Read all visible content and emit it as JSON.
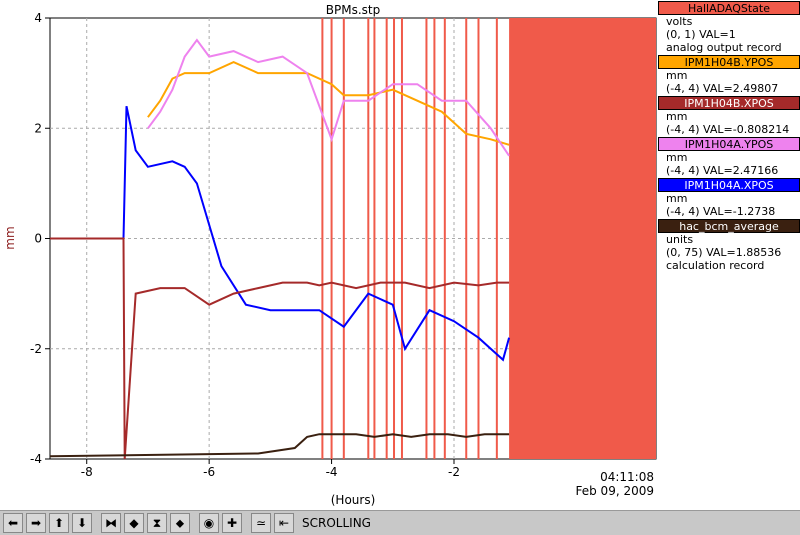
{
  "chart_data": {
    "type": "line",
    "title": "BPMs.stp",
    "xlabel": "(Hours)",
    "ylabel": "mm",
    "xlim": [
      -8.6,
      1.3
    ],
    "ylim": [
      -4,
      4
    ],
    "x_ticks": [
      -8,
      -6,
      -4,
      -2
    ],
    "x_tick_labels": [
      "-8",
      "-6",
      "-4",
      "-2"
    ],
    "y_ticks": [
      4,
      2,
      0,
      -2,
      -4
    ],
    "y_tick_labels": [
      "4",
      "2",
      "0",
      "-2",
      "-4"
    ],
    "grid": true,
    "timestamp": "04:11:08",
    "date": "Feb 09, 2009",
    "series": [
      {
        "name": "IPM1H04A.XPOS",
        "color": "#0000ff",
        "x": [
          -8.6,
          -7.4,
          -7.35,
          -7.2,
          -7.0,
          -6.6,
          -6.4,
          -6.2,
          -5.8,
          -5.4,
          -5.0,
          -4.6,
          -4.2,
          -3.8,
          -3.4,
          -3.0,
          -2.8,
          -2.4,
          -2.0,
          -1.6,
          -1.4,
          -1.2,
          -1.1
        ],
        "values": [
          0,
          0,
          2.4,
          1.6,
          1.3,
          1.4,
          1.3,
          1.0,
          -0.5,
          -1.2,
          -1.3,
          -1.3,
          -1.3,
          -1.6,
          -1.0,
          -1.2,
          -2.0,
          -1.3,
          -1.5,
          -1.8,
          -2.0,
          -2.2,
          -1.8
        ]
      },
      {
        "name": "IPM1H04B.XPOS",
        "color": "#a52a2a",
        "x": [
          -8.6,
          -7.4,
          -7.38,
          -7.2,
          -6.8,
          -6.4,
          -6.0,
          -5.6,
          -5.2,
          -4.8,
          -4.4,
          -4.2,
          -4.0,
          -3.6,
          -3.2,
          -2.8,
          -2.4,
          -2.0,
          -1.6,
          -1.3,
          -1.1
        ],
        "values": [
          0,
          0,
          -4,
          -1.0,
          -0.9,
          -0.9,
          -1.2,
          -1.0,
          -0.9,
          -0.8,
          -0.8,
          -0.85,
          -0.8,
          -0.9,
          -0.8,
          -0.8,
          -0.9,
          -0.8,
          -0.85,
          -0.8,
          -0.8
        ]
      },
      {
        "name": "IPM1H04B.YPOS",
        "color": "#ffa500",
        "x": [
          -7.0,
          -6.8,
          -6.6,
          -6.4,
          -6.0,
          -5.6,
          -5.2,
          -4.8,
          -4.4,
          -4.0,
          -3.8,
          -3.4,
          -3.0,
          -2.6,
          -2.2,
          -1.8,
          -1.4,
          -1.1
        ],
        "values": [
          2.2,
          2.5,
          2.9,
          3.0,
          3.0,
          3.2,
          3.0,
          3.0,
          3.0,
          2.8,
          2.6,
          2.6,
          2.7,
          2.5,
          2.3,
          1.9,
          1.8,
          1.7
        ]
      },
      {
        "name": "IPM1H04A.YPOS",
        "color": "#ee82ee",
        "x": [
          -7.0,
          -6.8,
          -6.6,
          -6.4,
          -6.2,
          -6.0,
          -5.6,
          -5.2,
          -4.8,
          -4.4,
          -4.0,
          -3.8,
          -3.4,
          -3.0,
          -2.6,
          -2.2,
          -1.8,
          -1.4,
          -1.1
        ],
        "values": [
          2.0,
          2.3,
          2.7,
          3.3,
          3.6,
          3.3,
          3.4,
          3.2,
          3.3,
          3.0,
          1.8,
          2.5,
          2.5,
          2.8,
          2.8,
          2.5,
          2.5,
          2.0,
          1.5
        ]
      },
      {
        "name": "hac_bcm_average",
        "color": "#3a2010",
        "x": [
          -8.6,
          -5.2,
          -4.6,
          -4.4,
          -4.2,
          -3.9,
          -3.6,
          -3.3,
          -3.0,
          -2.7,
          -2.4,
          -2.1,
          -1.8,
          -1.5,
          -1.2,
          -1.1
        ],
        "values": [
          -3.95,
          -3.9,
          -3.8,
          -3.6,
          -3.55,
          -3.55,
          -3.55,
          -3.6,
          -3.55,
          -3.6,
          -3.55,
          -3.55,
          -3.6,
          -3.55,
          -3.55,
          -3.55
        ]
      },
      {
        "name": "HallADAQState",
        "color": "#f05a4a",
        "blocks": [
          [
            -1.1,
            1.3
          ]
        ],
        "lines": [
          -4.15,
          -4.0,
          -3.8,
          -3.4,
          -3.3,
          -3.1,
          -2.98,
          -2.85,
          -2.45,
          -2.32,
          -2.15,
          -1.8,
          -1.6,
          -1.3
        ]
      }
    ]
  },
  "legend": [
    {
      "name": "HallADAQState",
      "unit": "volts",
      "range": "(0, 1) VAL=1",
      "extra": "analog output record",
      "bg": "#f05a4a"
    },
    {
      "name": "IPM1H04B.YPOS",
      "unit": "mm",
      "range": "(-4, 4) VAL=2.49807",
      "bg": "#ffa500"
    },
    {
      "name": "IPM1H04B.XPOS",
      "unit": "mm",
      "range": "(-4, 4) VAL=-0.808214",
      "bg": "#a52a2a"
    },
    {
      "name": "IPM1H04A.YPOS",
      "unit": "mm",
      "range": "(-4, 4) VAL=2.47166",
      "bg": "#ee82ee"
    },
    {
      "name": "IPM1H04A.XPOS",
      "unit": "mm",
      "range": "(-4, 4) VAL=-1.2738",
      "bg": "#0000ff"
    },
    {
      "name": "hac_bcm_average",
      "unit": "units",
      "range": "(0, 75) VAL=1.88536",
      "extra": "calculation record",
      "bg": "#3a2010"
    }
  ],
  "toolbar": {
    "status": "SCROLLING",
    "buttons": [
      {
        "icon": "arrow-left-icon",
        "glyph": "⬅"
      },
      {
        "icon": "arrow-right-icon",
        "glyph": "➡"
      },
      {
        "icon": "arrow-up-icon",
        "glyph": "⬆"
      },
      {
        "icon": "arrow-down-icon",
        "glyph": "⬇"
      },
      {
        "icon": "zoom-in-x-icon",
        "glyph": "⧓"
      },
      {
        "icon": "zoom-out-x-icon",
        "glyph": "◆"
      },
      {
        "icon": "zoom-in-y-icon",
        "glyph": "⧗"
      },
      {
        "icon": "zoom-out-y-icon",
        "glyph": "⬥"
      },
      {
        "icon": "reset-icon",
        "glyph": "◉"
      },
      {
        "icon": "add-icon",
        "glyph": "✚"
      },
      {
        "icon": "autoscale-icon",
        "glyph": "≃"
      },
      {
        "icon": "scroll-icon",
        "glyph": "⇤"
      }
    ]
  }
}
